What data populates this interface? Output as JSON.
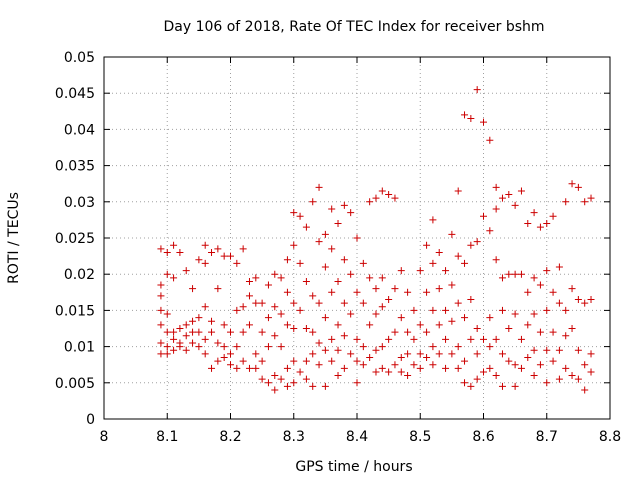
{
  "chart_data": {
    "type": "scatter",
    "title": "Day 106 of 2018, Rate Of TEC Index for receiver bshm",
    "xlabel": "GPS time / hours",
    "ylabel": "ROTI / TECUs",
    "xlim": [
      8.0,
      8.8
    ],
    "ylim": [
      0.0,
      0.05
    ],
    "xticks": [
      "8",
      "8.1",
      "8.2",
      "8.3",
      "8.4",
      "8.5",
      "8.6",
      "8.7",
      "8.8"
    ],
    "yticks": [
      "0",
      "0.005",
      "0.01",
      "0.015",
      "0.02",
      "0.025",
      "0.03",
      "0.035",
      "0.04",
      "0.045",
      "0.05"
    ],
    "grid": true,
    "marker": "+",
    "color": "#cc0000",
    "series": [
      {
        "name": "ROTI",
        "points": [
          [
            8.09,
            0.0235
          ],
          [
            8.09,
            0.0185
          ],
          [
            8.09,
            0.017
          ],
          [
            8.09,
            0.015
          ],
          [
            8.09,
            0.013
          ],
          [
            8.09,
            0.0105
          ],
          [
            8.09,
            0.009
          ],
          [
            8.1,
            0.023
          ],
          [
            8.1,
            0.02
          ],
          [
            8.1,
            0.0145
          ],
          [
            8.1,
            0.012
          ],
          [
            8.1,
            0.01
          ],
          [
            8.1,
            0.009
          ],
          [
            8.11,
            0.024
          ],
          [
            8.11,
            0.0195
          ],
          [
            8.11,
            0.012
          ],
          [
            8.11,
            0.011
          ],
          [
            8.11,
            0.0095
          ],
          [
            8.12,
            0.023
          ],
          [
            8.12,
            0.0125
          ],
          [
            8.12,
            0.0105
          ],
          [
            8.12,
            0.01
          ],
          [
            8.13,
            0.0205
          ],
          [
            8.13,
            0.013
          ],
          [
            8.13,
            0.0115
          ],
          [
            8.13,
            0.0095
          ],
          [
            8.14,
            0.018
          ],
          [
            8.14,
            0.0135
          ],
          [
            8.14,
            0.012
          ],
          [
            8.14,
            0.0105
          ],
          [
            8.15,
            0.022
          ],
          [
            8.15,
            0.014
          ],
          [
            8.15,
            0.012
          ],
          [
            8.15,
            0.01
          ],
          [
            8.16,
            0.024
          ],
          [
            8.16,
            0.0215
          ],
          [
            8.16,
            0.0155
          ],
          [
            8.16,
            0.011
          ],
          [
            8.16,
            0.009
          ],
          [
            8.17,
            0.023
          ],
          [
            8.17,
            0.0135
          ],
          [
            8.17,
            0.012
          ],
          [
            8.17,
            0.007
          ],
          [
            8.18,
            0.0235
          ],
          [
            8.18,
            0.018
          ],
          [
            8.18,
            0.0105
          ],
          [
            8.18,
            0.008
          ],
          [
            8.19,
            0.0225
          ],
          [
            8.19,
            0.013
          ],
          [
            8.19,
            0.01
          ],
          [
            8.19,
            0.0085
          ],
          [
            8.2,
            0.0225
          ],
          [
            8.2,
            0.012
          ],
          [
            8.2,
            0.009
          ],
          [
            8.2,
            0.0075
          ],
          [
            8.21,
            0.0215
          ],
          [
            8.21,
            0.015
          ],
          [
            8.21,
            0.01
          ],
          [
            8.21,
            0.007
          ],
          [
            8.22,
            0.0235
          ],
          [
            8.22,
            0.0155
          ],
          [
            8.22,
            0.012
          ],
          [
            8.22,
            0.008
          ],
          [
            8.23,
            0.019
          ],
          [
            8.23,
            0.017
          ],
          [
            8.23,
            0.013
          ],
          [
            8.23,
            0.007
          ],
          [
            8.24,
            0.0195
          ],
          [
            8.24,
            0.016
          ],
          [
            8.24,
            0.009
          ],
          [
            8.24,
            0.007
          ],
          [
            8.25,
            0.016
          ],
          [
            8.25,
            0.012
          ],
          [
            8.25,
            0.008
          ],
          [
            8.25,
            0.0055
          ],
          [
            8.26,
            0.0185
          ],
          [
            8.26,
            0.014
          ],
          [
            8.26,
            0.01
          ],
          [
            8.26,
            0.005
          ],
          [
            8.27,
            0.02
          ],
          [
            8.27,
            0.0155
          ],
          [
            8.27,
            0.0115
          ],
          [
            8.27,
            0.006
          ],
          [
            8.27,
            0.004
          ],
          [
            8.28,
            0.0195
          ],
          [
            8.28,
            0.0145
          ],
          [
            8.28,
            0.01
          ],
          [
            8.28,
            0.0055
          ],
          [
            8.29,
            0.022
          ],
          [
            8.29,
            0.0175
          ],
          [
            8.29,
            0.013
          ],
          [
            8.29,
            0.007
          ],
          [
            8.29,
            0.0045
          ],
          [
            8.3,
            0.0285
          ],
          [
            8.3,
            0.024
          ],
          [
            8.3,
            0.016
          ],
          [
            8.3,
            0.0125
          ],
          [
            8.3,
            0.008
          ],
          [
            8.3,
            0.005
          ],
          [
            8.31,
            0.028
          ],
          [
            8.31,
            0.0215
          ],
          [
            8.31,
            0.015
          ],
          [
            8.31,
            0.0065
          ],
          [
            8.32,
            0.0265
          ],
          [
            8.32,
            0.019
          ],
          [
            8.32,
            0.0125
          ],
          [
            8.32,
            0.008
          ],
          [
            8.32,
            0.0055
          ],
          [
            8.33,
            0.03
          ],
          [
            8.33,
            0.017
          ],
          [
            8.33,
            0.012
          ],
          [
            8.33,
            0.009
          ],
          [
            8.33,
            0.0045
          ],
          [
            8.34,
            0.032
          ],
          [
            8.34,
            0.0245
          ],
          [
            8.34,
            0.016
          ],
          [
            8.34,
            0.0105
          ],
          [
            8.34,
            0.0075
          ],
          [
            8.35,
            0.0255
          ],
          [
            8.35,
            0.021
          ],
          [
            8.35,
            0.014
          ],
          [
            8.35,
            0.0095
          ],
          [
            8.35,
            0.0045
          ],
          [
            8.36,
            0.029
          ],
          [
            8.36,
            0.0235
          ],
          [
            8.36,
            0.0175
          ],
          [
            8.36,
            0.011
          ],
          [
            8.36,
            0.008
          ],
          [
            8.37,
            0.027
          ],
          [
            8.37,
            0.019
          ],
          [
            8.37,
            0.013
          ],
          [
            8.37,
            0.0095
          ],
          [
            8.37,
            0.006
          ],
          [
            8.38,
            0.0295
          ],
          [
            8.38,
            0.022
          ],
          [
            8.38,
            0.016
          ],
          [
            8.38,
            0.0115
          ],
          [
            8.38,
            0.007
          ],
          [
            8.39,
            0.0285
          ],
          [
            8.39,
            0.02
          ],
          [
            8.39,
            0.0145
          ],
          [
            8.39,
            0.009
          ],
          [
            8.4,
            0.025
          ],
          [
            8.4,
            0.0175
          ],
          [
            8.4,
            0.011
          ],
          [
            8.4,
            0.008
          ],
          [
            8.4,
            0.005
          ],
          [
            8.41,
            0.0215
          ],
          [
            8.41,
            0.016
          ],
          [
            8.41,
            0.01
          ],
          [
            8.41,
            0.0075
          ],
          [
            8.42,
            0.03
          ],
          [
            8.42,
            0.0195
          ],
          [
            8.42,
            0.013
          ],
          [
            8.42,
            0.0085
          ],
          [
            8.43,
            0.0305
          ],
          [
            8.43,
            0.018
          ],
          [
            8.43,
            0.0145
          ],
          [
            8.43,
            0.0095
          ],
          [
            8.43,
            0.0065
          ],
          [
            8.44,
            0.0315
          ],
          [
            8.44,
            0.0195
          ],
          [
            8.44,
            0.0155
          ],
          [
            8.44,
            0.01
          ],
          [
            8.44,
            0.007
          ],
          [
            8.45,
            0.031
          ],
          [
            8.45,
            0.0165
          ],
          [
            8.45,
            0.011
          ],
          [
            8.45,
            0.0065
          ],
          [
            8.46,
            0.0305
          ],
          [
            8.46,
            0.018
          ],
          [
            8.46,
            0.012
          ],
          [
            8.46,
            0.0075
          ],
          [
            8.47,
            0.0205
          ],
          [
            8.47,
            0.014
          ],
          [
            8.47,
            0.0085
          ],
          [
            8.47,
            0.0065
          ],
          [
            8.48,
            0.0175
          ],
          [
            8.48,
            0.012
          ],
          [
            8.48,
            0.009
          ],
          [
            8.48,
            0.006
          ],
          [
            8.49,
            0.015
          ],
          [
            8.49,
            0.011
          ],
          [
            8.49,
            0.0075
          ],
          [
            8.5,
            0.0205
          ],
          [
            8.5,
            0.013
          ],
          [
            8.5,
            0.009
          ],
          [
            8.5,
            0.007
          ],
          [
            8.51,
            0.024
          ],
          [
            8.51,
            0.0175
          ],
          [
            8.51,
            0.012
          ],
          [
            8.51,
            0.0085
          ],
          [
            8.52,
            0.0275
          ],
          [
            8.52,
            0.0215
          ],
          [
            8.52,
            0.015
          ],
          [
            8.52,
            0.01
          ],
          [
            8.52,
            0.0075
          ],
          [
            8.53,
            0.023
          ],
          [
            8.53,
            0.018
          ],
          [
            8.53,
            0.013
          ],
          [
            8.53,
            0.009
          ],
          [
            8.54,
            0.0205
          ],
          [
            8.54,
            0.015
          ],
          [
            8.54,
            0.011
          ],
          [
            8.54,
            0.007
          ],
          [
            8.55,
            0.0255
          ],
          [
            8.55,
            0.0185
          ],
          [
            8.55,
            0.0135
          ],
          [
            8.55,
            0.009
          ],
          [
            8.56,
            0.0315
          ],
          [
            8.56,
            0.0225
          ],
          [
            8.56,
            0.016
          ],
          [
            8.56,
            0.01
          ],
          [
            8.56,
            0.007
          ],
          [
            8.57,
            0.042
          ],
          [
            8.57,
            0.0215
          ],
          [
            8.57,
            0.014
          ],
          [
            8.57,
            0.008
          ],
          [
            8.57,
            0.005
          ],
          [
            8.58,
            0.0415
          ],
          [
            8.58,
            0.024
          ],
          [
            8.58,
            0.0165
          ],
          [
            8.58,
            0.011
          ],
          [
            8.58,
            0.0045
          ],
          [
            8.59,
            0.0455
          ],
          [
            8.59,
            0.0245
          ],
          [
            8.59,
            0.0125
          ],
          [
            8.59,
            0.009
          ],
          [
            8.59,
            0.0055
          ],
          [
            8.6,
            0.041
          ],
          [
            8.6,
            0.028
          ],
          [
            8.6,
            0.011
          ],
          [
            8.6,
            0.0065
          ],
          [
            8.61,
            0.0385
          ],
          [
            8.61,
            0.026
          ],
          [
            8.61,
            0.014
          ],
          [
            8.61,
            0.01
          ],
          [
            8.61,
            0.007
          ],
          [
            8.62,
            0.032
          ],
          [
            8.62,
            0.029
          ],
          [
            8.62,
            0.022
          ],
          [
            8.62,
            0.011
          ],
          [
            8.62,
            0.006
          ],
          [
            8.63,
            0.0305
          ],
          [
            8.63,
            0.0195
          ],
          [
            8.63,
            0.015
          ],
          [
            8.63,
            0.009
          ],
          [
            8.63,
            0.0045
          ],
          [
            8.64,
            0.031
          ],
          [
            8.64,
            0.02
          ],
          [
            8.64,
            0.0125
          ],
          [
            8.64,
            0.008
          ],
          [
            8.65,
            0.0295
          ],
          [
            8.65,
            0.02
          ],
          [
            8.65,
            0.0145
          ],
          [
            8.65,
            0.0075
          ],
          [
            8.65,
            0.0045
          ],
          [
            8.66,
            0.0315
          ],
          [
            8.66,
            0.02
          ],
          [
            8.66,
            0.011
          ],
          [
            8.66,
            0.007
          ],
          [
            8.67,
            0.027
          ],
          [
            8.67,
            0.0175
          ],
          [
            8.67,
            0.013
          ],
          [
            8.67,
            0.0085
          ],
          [
            8.68,
            0.0285
          ],
          [
            8.68,
            0.0195
          ],
          [
            8.68,
            0.0145
          ],
          [
            8.68,
            0.0095
          ],
          [
            8.68,
            0.006
          ],
          [
            8.69,
            0.0265
          ],
          [
            8.69,
            0.0185
          ],
          [
            8.69,
            0.012
          ],
          [
            8.69,
            0.0075
          ],
          [
            8.7,
            0.027
          ],
          [
            8.7,
            0.0205
          ],
          [
            8.7,
            0.015
          ],
          [
            8.7,
            0.0095
          ],
          [
            8.7,
            0.005
          ],
          [
            8.71,
            0.028
          ],
          [
            8.71,
            0.0175
          ],
          [
            8.71,
            0.012
          ],
          [
            8.71,
            0.008
          ],
          [
            8.72,
            0.021
          ],
          [
            8.72,
            0.016
          ],
          [
            8.72,
            0.0095
          ],
          [
            8.72,
            0.0055
          ],
          [
            8.73,
            0.03
          ],
          [
            8.73,
            0.015
          ],
          [
            8.73,
            0.0115
          ],
          [
            8.73,
            0.007
          ],
          [
            8.74,
            0.0325
          ],
          [
            8.74,
            0.018
          ],
          [
            8.74,
            0.0125
          ],
          [
            8.74,
            0.006
          ],
          [
            8.75,
            0.032
          ],
          [
            8.75,
            0.0165
          ],
          [
            8.75,
            0.0095
          ],
          [
            8.75,
            0.0055
          ],
          [
            8.76,
            0.03
          ],
          [
            8.76,
            0.016
          ],
          [
            8.76,
            0.0075
          ],
          [
            8.76,
            0.004
          ],
          [
            8.77,
            0.0305
          ],
          [
            8.77,
            0.0165
          ],
          [
            8.77,
            0.009
          ],
          [
            8.77,
            0.0065
          ]
        ]
      }
    ]
  }
}
